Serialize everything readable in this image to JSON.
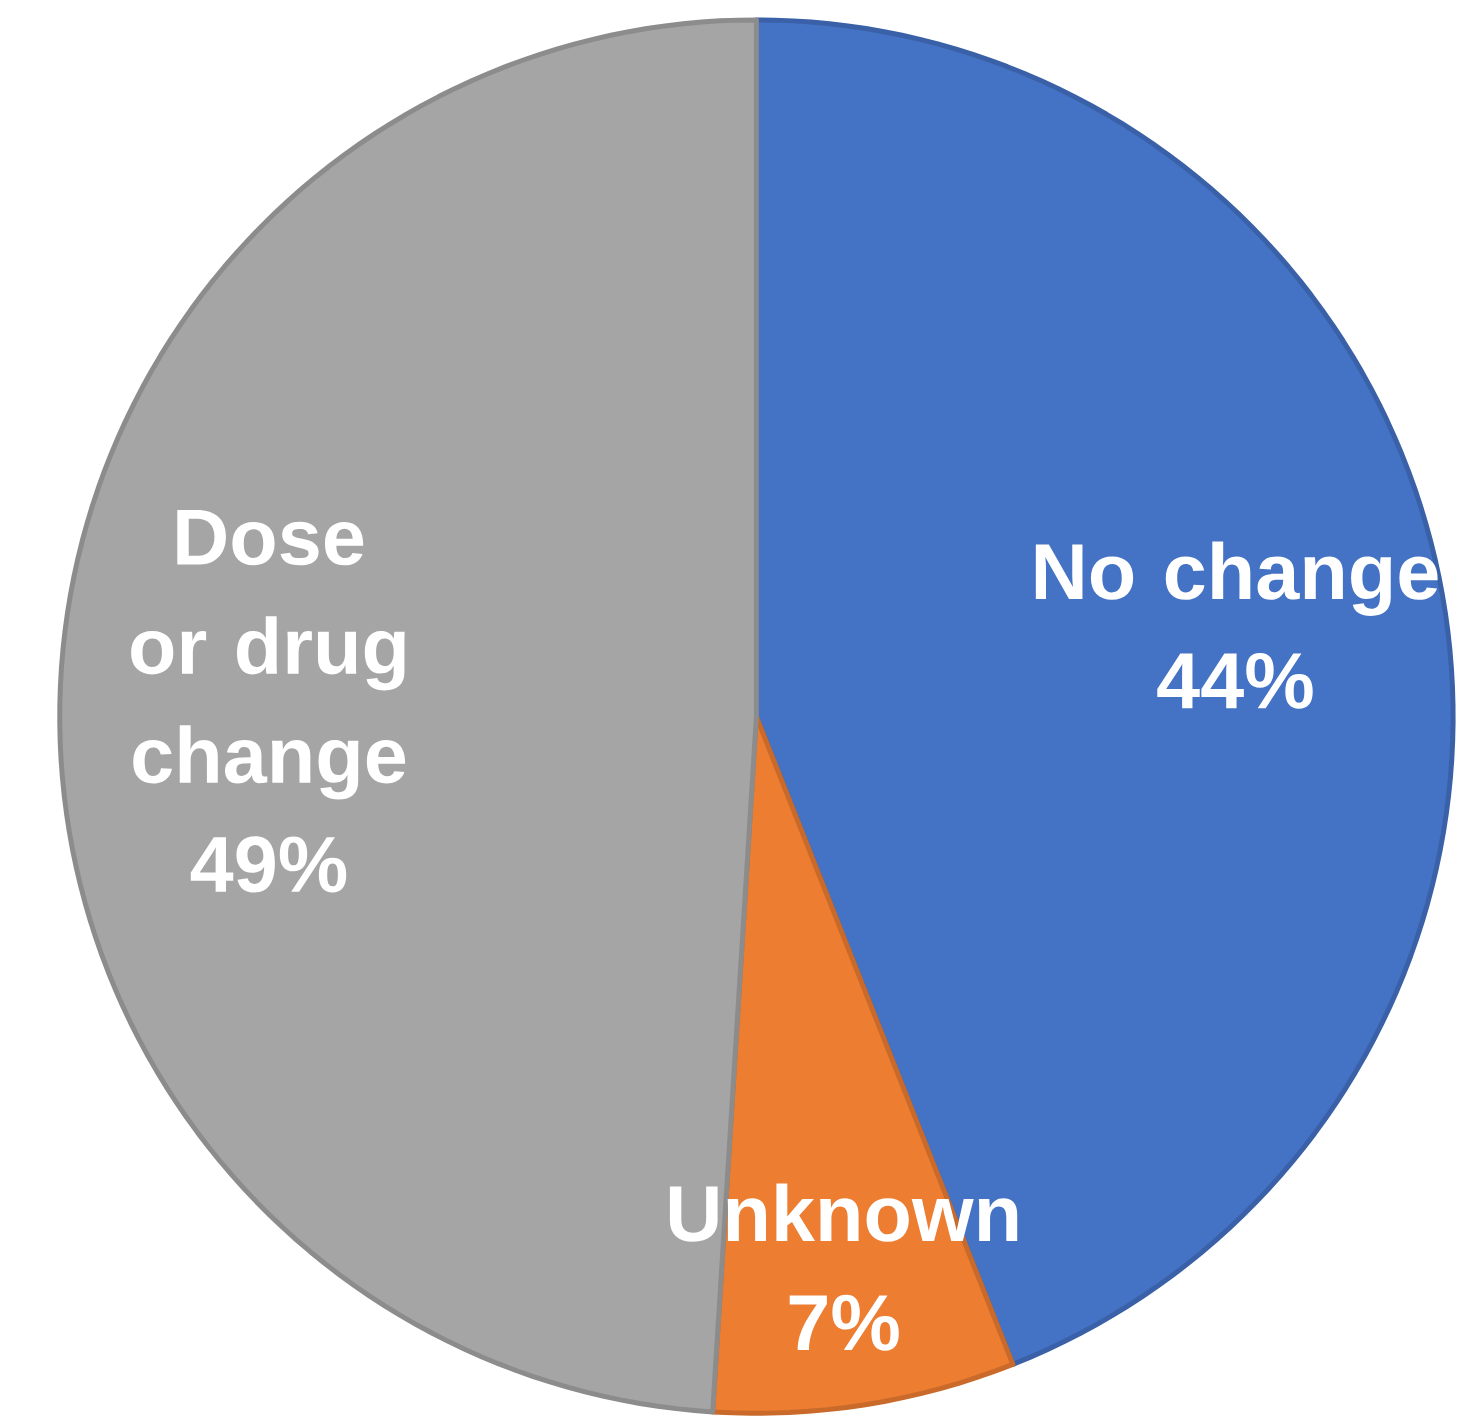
{
  "chart_data": {
    "type": "pie",
    "categories": [
      "No change",
      "Unknown",
      "Dose or drug change"
    ],
    "values": [
      44,
      7,
      49
    ],
    "colors": [
      "#4472c4",
      "#ed7d31",
      "#a5a5a5"
    ],
    "value_labels": [
      "44%",
      "7%",
      "49%"
    ]
  }
}
